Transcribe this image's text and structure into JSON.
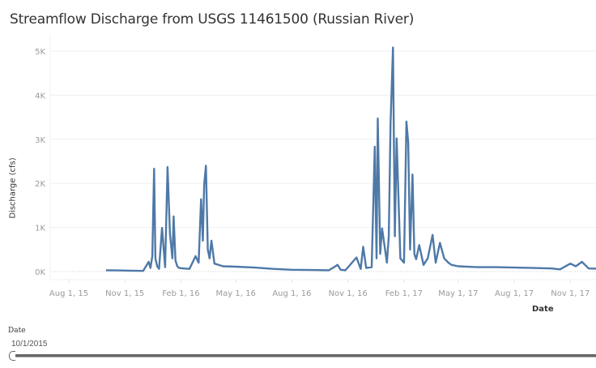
{
  "title": "Streamflow Discharge from USGS 11461500 (Russian River)",
  "y_axis": {
    "label": "Discharge (cfs)",
    "ticks": [
      "0K",
      "1K",
      "2K",
      "3K",
      "4K",
      "5K"
    ]
  },
  "x_axis": {
    "label": "Date",
    "ticks": [
      "Aug 1, 15",
      "Nov 1, 15",
      "Feb 1, 16",
      "May 1, 16",
      "Aug 1, 16",
      "Nov 1, 16",
      "Feb 1, 17",
      "May 1, 17",
      "Aug 1, 17",
      "Nov 1, 17"
    ]
  },
  "filter": {
    "title": "Date",
    "value": "10/1/2015"
  },
  "colors": {
    "line": "#4e79a7",
    "grid": "#efefef",
    "tick_text": "#9a9a9a"
  },
  "chart_data": {
    "type": "line",
    "title": "Streamflow Discharge from USGS 11461500 (Russian River)",
    "xlabel": "Date",
    "ylabel": "Discharge (cfs)",
    "ylim": [
      0,
      5300
    ],
    "grid": true,
    "x_tick_labels": [
      "Aug 1, 15",
      "Nov 1, 15",
      "Feb 1, 16",
      "May 1, 16",
      "Aug 1, 16",
      "Nov 1, 16",
      "Feb 1, 17",
      "May 1, 17",
      "Aug 1, 17",
      "Nov 1, 17"
    ],
    "y_tick_labels": [
      "0K",
      "1K",
      "2K",
      "3K",
      "4K",
      "5K"
    ],
    "series": [
      {
        "name": "Discharge (cfs)",
        "x": [
          "2015-10-01",
          "2015-10-20",
          "2015-11-10",
          "2015-12-01",
          "2015-12-10",
          "2015-12-13",
          "2015-12-16",
          "2015-12-19",
          "2015-12-21",
          "2015-12-24",
          "2015-12-27",
          "2016-01-01",
          "2016-01-06",
          "2016-01-10",
          "2016-01-14",
          "2016-01-18",
          "2016-01-20",
          "2016-01-23",
          "2016-01-26",
          "2016-01-29",
          "2016-02-05",
          "2016-02-15",
          "2016-02-25",
          "2016-03-01",
          "2016-03-05",
          "2016-03-08",
          "2016-03-10",
          "2016-03-13",
          "2016-03-16",
          "2016-03-19",
          "2016-03-22",
          "2016-03-27",
          "2016-04-10",
          "2016-05-01",
          "2016-06-01",
          "2016-07-01",
          "2016-08-01",
          "2016-09-01",
          "2016-10-01",
          "2016-10-15",
          "2016-10-20",
          "2016-10-28",
          "2016-11-15",
          "2016-11-22",
          "2016-11-26",
          "2016-12-01",
          "2016-12-10",
          "2016-12-15",
          "2016-12-18",
          "2016-12-20",
          "2016-12-24",
          "2016-12-27",
          "2017-01-04",
          "2017-01-07",
          "2017-01-10",
          "2017-01-14",
          "2017-01-17",
          "2017-01-20",
          "2017-01-26",
          "2017-02-01",
          "2017-02-05",
          "2017-02-08",
          "2017-02-11",
          "2017-02-15",
          "2017-02-18",
          "2017-02-21",
          "2017-02-26",
          "2017-03-05",
          "2017-03-12",
          "2017-03-20",
          "2017-03-25",
          "2017-04-01",
          "2017-04-08",
          "2017-04-15",
          "2017-04-20",
          "2017-05-01",
          "2017-06-01",
          "2017-07-01",
          "2017-08-01",
          "2017-09-01",
          "2017-10-01",
          "2017-10-15",
          "2017-11-01",
          "2017-11-10",
          "2017-11-20",
          "2017-12-01",
          "2017-12-31"
        ],
        "values": [
          30,
          25,
          20,
          15,
          220,
          80,
          350,
          2330,
          300,
          120,
          60,
          990,
          100,
          2370,
          850,
          300,
          1250,
          250,
          120,
          80,
          70,
          60,
          350,
          200,
          1640,
          700,
          1960,
          2400,
          500,
          300,
          700,
          180,
          120,
          110,
          90,
          60,
          40,
          35,
          30,
          150,
          40,
          30,
          320,
          60,
          560,
          80,
          100,
          2830,
          300,
          3470,
          400,
          980,
          200,
          800,
          3360,
          5080,
          800,
          3020,
          300,
          200,
          3400,
          2930,
          500,
          2200,
          400,
          280,
          600,
          150,
          300,
          830,
          200,
          650,
          300,
          200,
          150,
          120,
          100,
          100,
          90,
          80,
          70,
          50,
          180,
          120,
          220,
          70,
          60
        ]
      }
    ]
  }
}
